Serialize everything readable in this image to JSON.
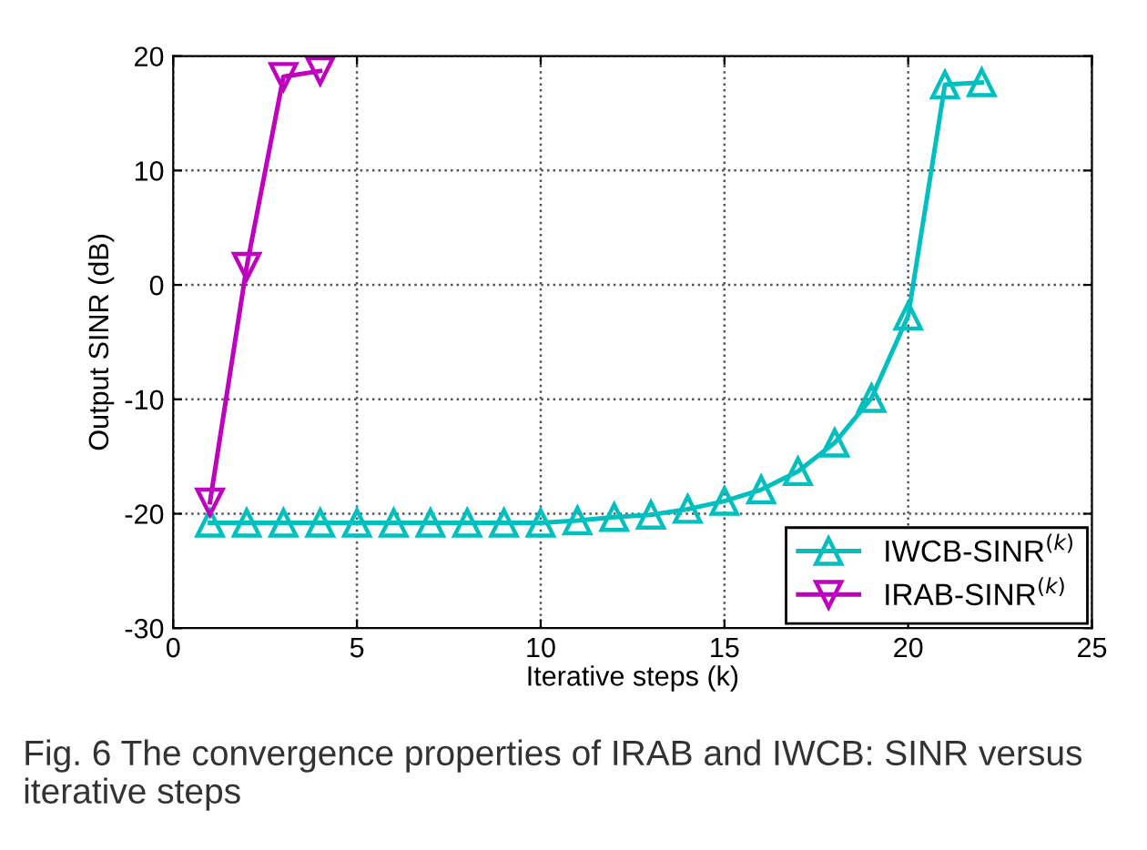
{
  "chart_data": {
    "type": "line",
    "xlabel": "Iterative steps (k)",
    "ylabel": "Output SINR (dB)",
    "xlim": [
      0,
      25
    ],
    "xticks": [
      0,
      5,
      10,
      15,
      20,
      25
    ],
    "ylim": [
      -30,
      20
    ],
    "yticks": [
      -30,
      -20,
      -10,
      0,
      10,
      20
    ],
    "grid": true,
    "legend": "bottom right",
    "line_style": "solid",
    "series": [
      {
        "name": "IWCB-SINR$^{(k)}$",
        "color": "#00bfbf",
        "marker": "triangle",
        "x": [
          1,
          2,
          3,
          4,
          5,
          6,
          7,
          8,
          9,
          10,
          11,
          12,
          13,
          14,
          15,
          16,
          17,
          18,
          19,
          20,
          21,
          22
        ],
        "values": [
          -20.8,
          -20.8,
          -20.8,
          -20.8,
          -20.8,
          -20.8,
          -20.8,
          -20.8,
          -20.8,
          -20.8,
          -20.6,
          -20.3,
          -20.1,
          -19.6,
          -18.9,
          -17.9,
          -16.3,
          -13.8,
          -9.9,
          -2.7,
          17.5,
          17.7
        ]
      },
      {
        "name": "IRAB-SINR$^{(k)}$",
        "color": "#bf00bf",
        "marker": "triangle_down",
        "x": [
          1,
          2,
          3,
          4
        ],
        "values": [
          -19,
          1.6,
          18.2,
          18.7
        ]
      }
    ],
    "annotations": [
      "Fig. 6 The convergence properties of IRAB and IWCB: SINR versus iterative steps"
    ]
  }
}
